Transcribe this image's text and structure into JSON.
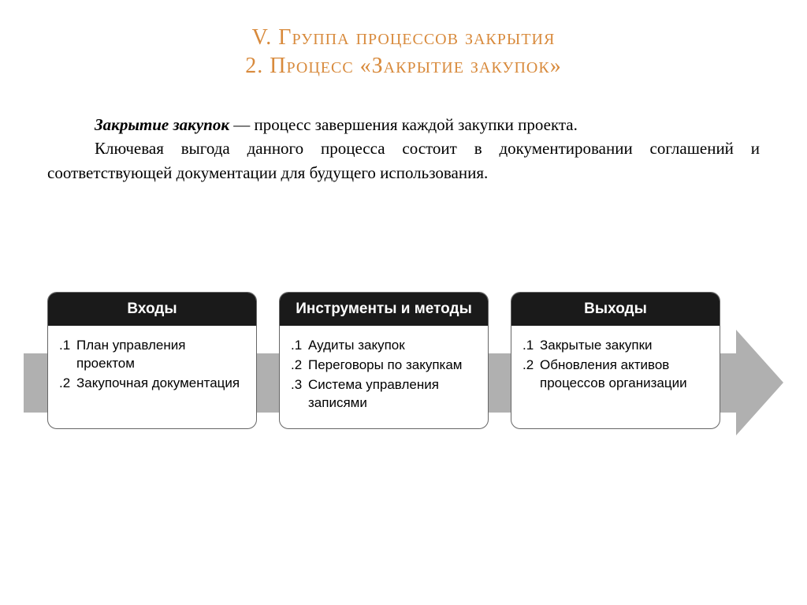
{
  "title": {
    "line1": "V. Группа процессов закрытия",
    "line2": "2. Процесс «Закрытие закупок»",
    "color": "#d88a3c",
    "fontsize": 28
  },
  "body": {
    "term": "Закрытие закупок",
    "para1_rest": " — процесс завершения каждой закупки проекта.",
    "para2": "Ключевая выгода данного процесса состоит в документировании соглашений и соответствующей документации для будущего использования.",
    "fontsize": 21,
    "color": "#000000"
  },
  "flow": {
    "arrow_color": "#b0b0b0",
    "card_border_color": "#666666",
    "card_header_bg": "#1a1a1a",
    "card_header_color": "#ffffff",
    "card_bg": "#ffffff",
    "header_fontsize": 19,
    "body_fontsize": 17,
    "cards": [
      {
        "header": "Входы",
        "items": [
          {
            "num": ".1",
            "text": "План управления проектом"
          },
          {
            "num": ".2",
            "text": "Закупочная документация"
          }
        ]
      },
      {
        "header": "Инструменты и методы",
        "items": [
          {
            "num": ".1",
            "text": "Аудиты закупок"
          },
          {
            "num": ".2",
            "text": "Переговоры по закупкам"
          },
          {
            "num": ".3",
            "text": "Система управления записями"
          }
        ]
      },
      {
        "header": "Выходы",
        "items": [
          {
            "num": ".1",
            "text": "Закрытые закупки"
          },
          {
            "num": ".2",
            "text": "Обновления активов процессов организации"
          }
        ]
      }
    ]
  }
}
